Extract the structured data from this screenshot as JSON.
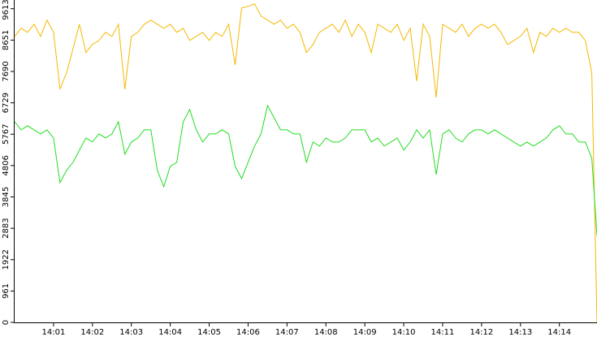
{
  "chart_data": {
    "type": "line",
    "x": [
      "14:00:00",
      "14:00:10",
      "14:00:20",
      "14:00:30",
      "14:00:40",
      "14:00:50",
      "14:01:00",
      "14:01:10",
      "14:01:20",
      "14:01:30",
      "14:01:40",
      "14:01:50",
      "14:02:00",
      "14:02:10",
      "14:02:20",
      "14:02:30",
      "14:02:40",
      "14:02:50",
      "14:03:00",
      "14:03:10",
      "14:03:20",
      "14:03:30",
      "14:03:40",
      "14:03:50",
      "14:04:00",
      "14:04:10",
      "14:04:20",
      "14:04:30",
      "14:04:40",
      "14:04:50",
      "14:05:00",
      "14:05:10",
      "14:05:20",
      "14:05:30",
      "14:05:40",
      "14:05:50",
      "14:06:00",
      "14:06:10",
      "14:06:20",
      "14:06:30",
      "14:06:40",
      "14:06:50",
      "14:07:00",
      "14:07:10",
      "14:07:20",
      "14:07:30",
      "14:07:40",
      "14:07:50",
      "14:08:00",
      "14:08:10",
      "14:08:20",
      "14:08:30",
      "14:08:40",
      "14:08:50",
      "14:09:00",
      "14:09:10",
      "14:09:20",
      "14:09:30",
      "14:09:40",
      "14:09:50",
      "14:10:00",
      "14:10:10",
      "14:10:20",
      "14:10:30",
      "14:10:40",
      "14:10:50",
      "14:11:00",
      "14:11:10",
      "14:11:20",
      "14:11:30",
      "14:11:40",
      "14:11:50",
      "14:12:00",
      "14:12:10",
      "14:12:20",
      "14:12:30",
      "14:12:40",
      "14:12:50",
      "14:13:00",
      "14:13:10",
      "14:13:20",
      "14:13:30",
      "14:13:40",
      "14:13:50",
      "14:14:00",
      "14:14:10",
      "14:14:20",
      "14:14:30",
      "14:14:40",
      "14:14:50",
      "14:14:58"
    ],
    "series": [
      {
        "color": "#f5b800",
        "values": [
          8765,
          9014,
          8889,
          9138,
          8765,
          9263,
          8889,
          7142,
          7644,
          8391,
          9138,
          8267,
          8516,
          8640,
          8889,
          8765,
          9138,
          7146,
          8765,
          8889,
          9138,
          9263,
          9138,
          9014,
          9138,
          8889,
          9014,
          8640,
          8765,
          8889,
          8640,
          8889,
          8765,
          9138,
          7893,
          9636,
          9686,
          9761,
          9387,
          9263,
          9138,
          9263,
          9014,
          9138,
          8889,
          8267,
          8516,
          8889,
          9014,
          9138,
          8889,
          9263,
          8765,
          9138,
          8889,
          8267,
          9138,
          9014,
          8889,
          9138,
          8640,
          9014,
          7395,
          9138,
          8765,
          6897,
          9138,
          9014,
          8889,
          9138,
          8765,
          9014,
          9138,
          9014,
          9138,
          8889,
          8516,
          8640,
          8765,
          9014,
          8267,
          8889,
          8765,
          9014,
          8889,
          9014,
          8889,
          8889,
          8640,
          7644,
          0
        ]
      },
      {
        "color": "#22dd22",
        "values": [
          6150,
          5901,
          6026,
          5901,
          5777,
          5901,
          5652,
          4283,
          4656,
          4905,
          5279,
          5652,
          5528,
          5777,
          5652,
          5777,
          6150,
          5154,
          5528,
          5652,
          5901,
          5901,
          4656,
          4158,
          4781,
          4905,
          6150,
          6524,
          5901,
          5528,
          5777,
          5777,
          5901,
          5777,
          4781,
          4407,
          4905,
          5403,
          5777,
          6648,
          6275,
          5901,
          5901,
          5777,
          5777,
          4905,
          5528,
          5403,
          5652,
          5528,
          5528,
          5652,
          5901,
          5901,
          5901,
          5528,
          5652,
          5403,
          5528,
          5652,
          5279,
          5528,
          5901,
          5652,
          5901,
          4532,
          5777,
          5901,
          5652,
          5528,
          5777,
          5901,
          5901,
          5777,
          5901,
          5777,
          5652,
          5528,
          5403,
          5528,
          5403,
          5528,
          5652,
          5901,
          6026,
          5777,
          5777,
          5528,
          5528,
          5030,
          2664
        ]
      }
    ],
    "xlim": [
      "14:00:00",
      "14:14:58"
    ],
    "xticks": [
      "14:01",
      "14:02",
      "14:03",
      "14:04",
      "14:05",
      "14:06",
      "14:07",
      "14:08",
      "14:09",
      "14:10",
      "14:11",
      "14:12",
      "14:13",
      "14:14"
    ],
    "ylim": [
      0,
      9880
    ],
    "yticks": [
      0,
      961,
      1922,
      2883,
      3845,
      4806,
      5767,
      6729,
      7690,
      8651,
      9613
    ]
  }
}
